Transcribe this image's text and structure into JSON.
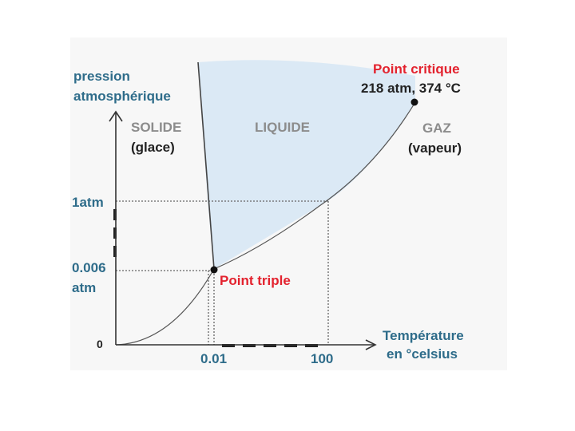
{
  "diagram": {
    "y_axis_label_line1": "pression",
    "y_axis_label_line2": "atmosphérique",
    "x_axis_label_line1": "Température",
    "x_axis_label_line2": "en °celsius",
    "regions": {
      "solid_line1": "SOLIDE",
      "solid_line2": "(glace)",
      "liquid": "LIQUIDE",
      "gas_line1": "GAZ",
      "gas_line2": "(vapeur)"
    },
    "y_ticks": {
      "one_atm": "1atm",
      "triple_line1": "0.006",
      "triple_line2": "atm",
      "zero": "0"
    },
    "x_ticks": {
      "triple": "0.01",
      "boiling": "100"
    },
    "critical_point": {
      "label": "Point critique",
      "value": "218 atm, 374 °C"
    },
    "triple_point": {
      "label": "Point triple"
    },
    "colors": {
      "liquid_fill": "#dbe9f5",
      "axis": "#333333",
      "blue_text": "#2e6c8a",
      "red_text": "#e3222e",
      "gray_text": "#8c8c8c"
    }
  }
}
